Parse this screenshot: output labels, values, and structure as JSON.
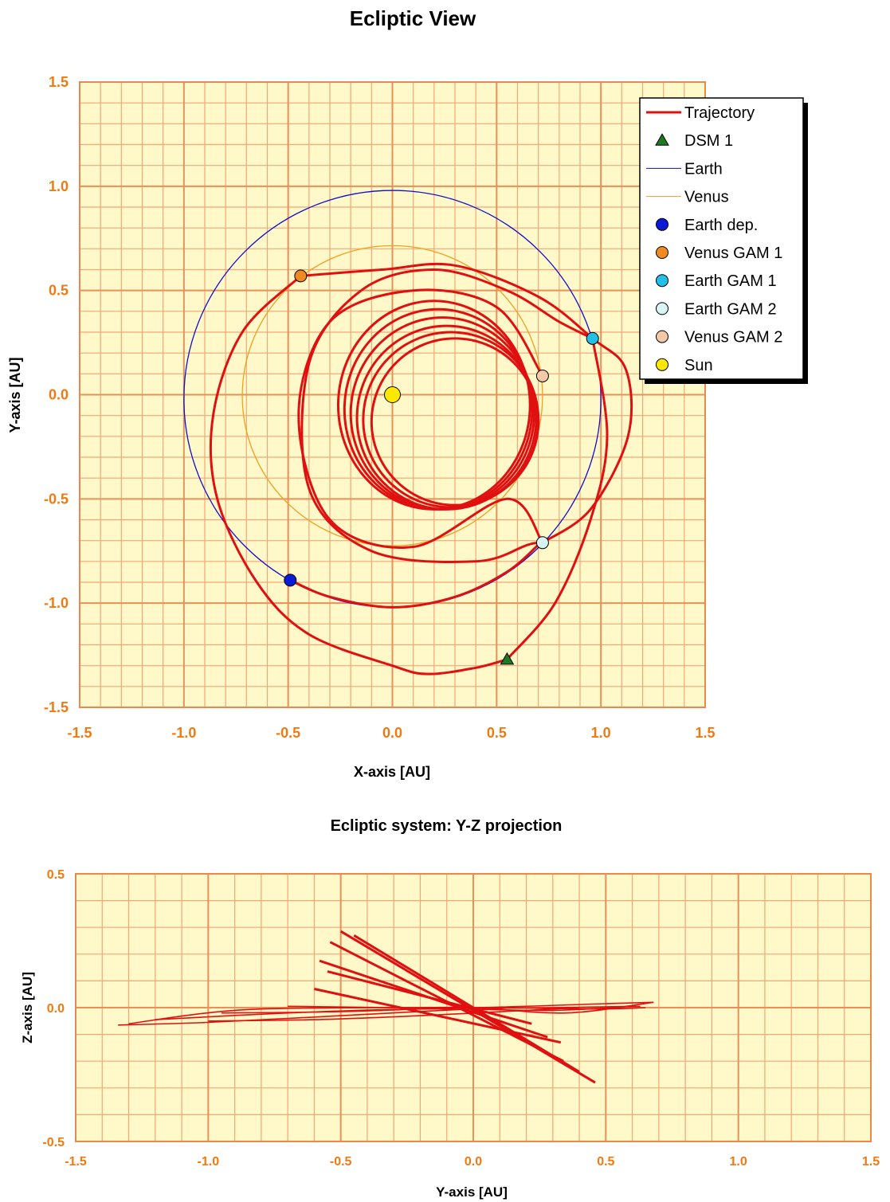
{
  "chart_data": [
    {
      "type": "scatter",
      "title": "Ecliptic View",
      "xlabel": "X-axis [AU]",
      "ylabel": "Y-axis [AU]",
      "xlim": [
        -1.5,
        1.5
      ],
      "ylim": [
        -1.5,
        1.5
      ],
      "grid": true,
      "xticks": [
        -1.5,
        -1.0,
        -0.5,
        0.0,
        0.5,
        1.0,
        1.5
      ],
      "yticks": [
        -1.5,
        -1.0,
        -0.5,
        0.0,
        0.5,
        1.0,
        1.5
      ],
      "tick_labels_x": [
        "-1.5",
        "-1.0",
        "-0.5",
        "0.0",
        "0.5",
        "1.0",
        "1.5"
      ],
      "tick_labels_y": [
        "-1.5",
        "-1.0",
        "-0.5",
        "0.0",
        "0.5",
        "1.0",
        "1.5"
      ],
      "legend_position": "top-right",
      "legend": [
        {
          "label": "Trajectory",
          "marker": "line",
          "color": "#e01010",
          "width": 3
        },
        {
          "label": "DSM 1",
          "marker": "triangle",
          "color": "#1f7a1f"
        },
        {
          "label": "Earth",
          "marker": "line",
          "color": "#1010cc",
          "width": 1
        },
        {
          "label": "Venus",
          "marker": "line",
          "color": "#f0a020",
          "width": 1
        },
        {
          "label": "Earth dep.",
          "marker": "circle",
          "color": "#0a1ad8"
        },
        {
          "label": "Venus GAM 1",
          "marker": "circle",
          "color": "#f08a20"
        },
        {
          "label": "Earth GAM 1",
          "marker": "circle",
          "color": "#22c0e8"
        },
        {
          "label": "Earth GAM 2",
          "marker": "circle",
          "color": "#d8f4f4"
        },
        {
          "label": "Venus GAM 2",
          "marker": "circle",
          "color": "#f4c9a8"
        },
        {
          "label": "Sun",
          "marker": "circle",
          "color": "#ffe800"
        }
      ],
      "earth_orbit": {
        "center": [
          0.0,
          -0.02
        ],
        "radius": 1.0
      },
      "venus_orbit": {
        "center": [
          0.0,
          -0.005
        ],
        "radius": 0.72
      },
      "trajectory_arcs": [
        [
          [
            -0.49,
            -0.89
          ],
          [
            -0.3,
            -0.97
          ],
          [
            0.0,
            -1.02
          ],
          [
            0.3,
            -0.97
          ],
          [
            0.55,
            -0.85
          ],
          [
            0.7,
            -0.72
          ]
        ],
        [
          [
            0.72,
            -0.71
          ],
          [
            0.95,
            -0.55
          ],
          [
            1.13,
            -0.2
          ],
          [
            1.12,
            0.12
          ],
          [
            0.96,
            0.27
          ],
          [
            0.7,
            0.47
          ],
          [
            0.3,
            0.62
          ],
          [
            -0.05,
            0.6
          ],
          [
            -0.44,
            0.57
          ]
        ],
        [
          [
            -0.44,
            0.57
          ],
          [
            -0.72,
            0.3
          ],
          [
            -0.86,
            -0.1
          ],
          [
            -0.84,
            -0.5
          ],
          [
            -0.65,
            -0.9
          ],
          [
            -0.4,
            -1.15
          ],
          [
            0.0,
            -1.3
          ],
          [
            0.17,
            -1.34
          ],
          [
            0.4,
            -1.31
          ],
          [
            0.55,
            -1.27
          ]
        ],
        [
          [
            0.55,
            -1.27
          ],
          [
            0.78,
            -1.0
          ],
          [
            0.95,
            -0.6
          ],
          [
            1.03,
            -0.2
          ],
          [
            0.96,
            0.27
          ]
        ],
        [
          [
            0.96,
            0.27
          ],
          [
            0.8,
            0.35
          ],
          [
            0.55,
            0.5
          ],
          [
            0.2,
            0.6
          ],
          [
            -0.15,
            0.5
          ],
          [
            -0.4,
            0.15
          ],
          [
            -0.4,
            -0.45
          ],
          [
            -0.1,
            -0.75
          ],
          [
            0.4,
            -0.8
          ],
          [
            0.65,
            -0.72
          ],
          [
            0.72,
            -0.71
          ]
        ],
        [
          [
            0.72,
            -0.71
          ],
          [
            0.55,
            -0.5
          ],
          [
            0.1,
            -0.73
          ],
          [
            -0.3,
            -0.6
          ],
          [
            -0.45,
            -0.1
          ],
          [
            -0.3,
            0.35
          ],
          [
            0.1,
            0.5
          ],
          [
            0.5,
            0.42
          ],
          [
            0.72,
            0.09
          ]
        ]
      ],
      "inner_loops": [
        {
          "cx": 0.2,
          "cy": -0.05,
          "rx": 0.46,
          "ry": 0.5
        },
        {
          "cx": 0.22,
          "cy": -0.07,
          "rx": 0.45,
          "ry": 0.48
        },
        {
          "cx": 0.24,
          "cy": -0.09,
          "rx": 0.44,
          "ry": 0.46
        },
        {
          "cx": 0.26,
          "cy": -0.11,
          "rx": 0.43,
          "ry": 0.44
        },
        {
          "cx": 0.28,
          "cy": -0.12,
          "rx": 0.42,
          "ry": 0.42
        },
        {
          "cx": 0.3,
          "cy": -0.13,
          "rx": 0.4,
          "ry": 0.4
        }
      ],
      "markers": [
        {
          "name": "DSM 1",
          "x": 0.55,
          "y": -1.27,
          "marker": "triangle",
          "color": "#1f7a1f"
        },
        {
          "name": "Earth dep.",
          "x": -0.49,
          "y": -0.89,
          "marker": "circle",
          "color": "#0a1ad8"
        },
        {
          "name": "Venus GAM 1",
          "x": -0.44,
          "y": 0.57,
          "marker": "circle",
          "color": "#f08a20"
        },
        {
          "name": "Earth GAM 1",
          "x": 0.96,
          "y": 0.27,
          "marker": "circle",
          "color": "#22c0e8"
        },
        {
          "name": "Earth GAM 2",
          "x": 0.72,
          "y": -0.71,
          "marker": "circle",
          "color": "#d8f4f4"
        },
        {
          "name": "Venus GAM 2",
          "x": 0.72,
          "y": 0.09,
          "marker": "circle",
          "color": "#f4c9a8"
        },
        {
          "name": "Sun",
          "x": 0.0,
          "y": 0.0,
          "marker": "circle",
          "color": "#ffe800"
        }
      ]
    },
    {
      "type": "line",
      "title": "Ecliptic system: Y-Z projection",
      "xlabel": "Y-axis [AU]",
      "ylabel": "Z-axis [AU]",
      "xlim": [
        -1.5,
        1.5
      ],
      "ylim": [
        -0.5,
        0.5
      ],
      "grid": true,
      "xticks": [
        -1.5,
        -1.0,
        -0.5,
        0.0,
        0.5,
        1.0,
        1.5
      ],
      "yticks": [
        -0.5,
        0.0,
        0.5
      ],
      "tick_labels_x": [
        "-1.5",
        "-1.0",
        "-0.5",
        "0.0",
        "0.5",
        "1.0",
        "1.5"
      ],
      "tick_labels_y": [
        "-0.5",
        "0.0",
        "0.5"
      ],
      "series_color": "#e01010",
      "diagonals": [
        [
          [
            -0.5,
            0.285
          ],
          [
            0.46,
            -0.28
          ]
        ],
        [
          [
            -0.45,
            0.27
          ],
          [
            0.4,
            -0.24
          ]
        ],
        [
          [
            -0.54,
            0.245
          ],
          [
            0.34,
            -0.2
          ]
        ],
        [
          [
            -0.58,
            0.175
          ],
          [
            0.28,
            -0.11
          ]
        ],
        [
          [
            -0.55,
            0.135
          ],
          [
            0.22,
            -0.06
          ]
        ],
        [
          [
            -0.6,
            0.07
          ],
          [
            0.33,
            -0.13
          ]
        ]
      ],
      "flat_lines": [
        [
          [
            -1.34,
            -0.065
          ],
          [
            -1.0,
            -0.055
          ],
          [
            -0.5,
            -0.03
          ],
          [
            0.0,
            -0.005
          ],
          [
            0.3,
            0.0
          ],
          [
            0.63,
            0.005
          ]
        ],
        [
          [
            -1.3,
            -0.06
          ],
          [
            -0.9,
            -0.01
          ],
          [
            -0.4,
            0.0
          ],
          [
            0.0,
            0.0
          ],
          [
            0.5,
            0.015
          ],
          [
            0.68,
            0.02
          ]
        ],
        [
          [
            -1.2,
            -0.045
          ],
          [
            -0.7,
            -0.02
          ],
          [
            -0.2,
            -0.005
          ],
          [
            0.3,
            -0.01
          ],
          [
            0.6,
            0.005
          ]
        ],
        [
          [
            -1.0,
            -0.05
          ],
          [
            -0.6,
            -0.045
          ],
          [
            -0.2,
            -0.03
          ],
          [
            0.2,
            -0.01
          ],
          [
            0.4,
            0.0
          ]
        ],
        [
          [
            -0.7,
            0.005
          ],
          [
            -0.3,
            0.0
          ],
          [
            0.0,
            0.0
          ],
          [
            0.35,
            -0.02
          ],
          [
            0.68,
            0.02
          ]
        ],
        [
          [
            -0.95,
            -0.02
          ],
          [
            -0.5,
            -0.015
          ],
          [
            0.0,
            0.0
          ],
          [
            0.45,
            -0.005
          ],
          [
            0.65,
            0.0
          ]
        ]
      ]
    }
  ]
}
